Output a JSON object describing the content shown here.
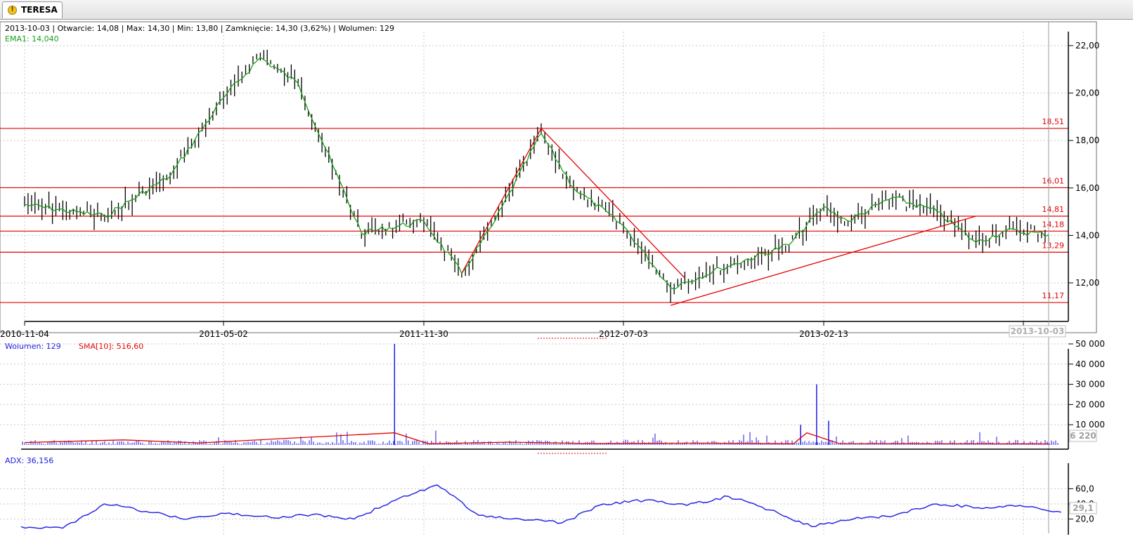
{
  "tab": {
    "title": "TERESA",
    "icon": "warning-icon",
    "icon_glyph": "!"
  },
  "price_panel": {
    "info_line": "2013-10-03 | Otwarcie: 14,08 | Max: 14,30 | Min: 13,80 | Zamknięcie: 14,30 (3,62%) | Wolumen: 129",
    "ema_label": "EMA1: 14,040",
    "y_ticks": [
      "22,00",
      "20,00",
      "18,00",
      "16,00",
      "14,00",
      "12,00"
    ],
    "x_ticks": [
      "2010-11-04",
      "2011-05-02",
      "2011-11-30",
      "2012-07-03",
      "2013-02-13",
      "2"
    ],
    "cursor_date": "2013-10-03",
    "levels": [
      "18,51",
      "16,01",
      "14,81",
      "14,18",
      "13,29",
      "11,17"
    ]
  },
  "volume_panel": {
    "label_volume": "Wolumen: 129",
    "label_sma": "SMA[10]: 516,60",
    "y_ticks": [
      "50 000",
      "40 000",
      "30 000",
      "20 000",
      "10 000"
    ],
    "cursor_value": "6 220"
  },
  "adx_panel": {
    "label": "ADX: 36,156",
    "y_ticks": [
      "60,0",
      "40,0",
      "20,0"
    ],
    "cursor_value": "29,1"
  },
  "colors": {
    "price_bar": "#000000",
    "ema": "#19a019",
    "level_line": "#e60000",
    "trend_line": "#e60000",
    "volume_bar": "#1a1ae6",
    "sma": "#e60000",
    "adx": "#2828e6",
    "info_text": "#000000",
    "grid": "#c8c8c8"
  },
  "chart_data": [
    {
      "type": "line",
      "title": "",
      "description_series": "price (OHLC bars) with EMA1",
      "x": [
        "2010-11-04",
        "2011-01-15",
        "2011-03-15",
        "2011-05-02",
        "2011-06-10",
        "2011-07-20",
        "2011-08-25",
        "2011-09-25",
        "2011-11-30",
        "2012-01-10",
        "2012-02-15",
        "2012-04-05",
        "2012-05-10",
        "2012-07-03",
        "2012-08-25",
        "2012-10-20",
        "2013-01-05",
        "2013-02-13",
        "2013-03-10",
        "2013-04-25",
        "2013-06-10",
        "2013-07-20",
        "2013-08-20",
        "2013-10-03"
      ],
      "series": [
        {
          "name": "EMA1",
          "values": [
            15.3,
            14.8,
            16.5,
            19.8,
            21.5,
            20.4,
            17.0,
            14.1,
            14.6,
            12.4,
            14.6,
            18.3,
            16.0,
            14.4,
            11.8,
            12.6,
            13.6,
            15.2,
            14.6,
            15.6,
            15.0,
            13.7,
            14.2,
            14.04
          ]
        }
      ],
      "levels": [
        18.51,
        16.01,
        14.81,
        14.18,
        13.29,
        11.17
      ],
      "ylim": [
        11,
        22.6
      ]
    },
    {
      "type": "bar",
      "title": "",
      "series": [
        {
          "name": "SMA[10]",
          "values": [
            1200,
            2500,
            1000,
            6000,
            600,
            1400,
            700,
            900,
            600,
            6000,
            700,
            516.6
          ]
        }
      ],
      "spikes": [
        {
          "x": "2011-10-30",
          "value": 50000
        },
        {
          "x": "2013-02-05",
          "value": 30000
        },
        {
          "x": "2013-01-18",
          "value": 10000
        },
        {
          "x": "2013-02-18",
          "value": 12000
        }
      ],
      "ylim": [
        0,
        50000
      ]
    },
    {
      "type": "line",
      "title": "",
      "series": [
        {
          "name": "ADX",
          "values": [
            10,
            8,
            40,
            30,
            20,
            28,
            22,
            26,
            20,
            45,
            65,
            25,
            20,
            15,
            40,
            45,
            38,
            50,
            32,
            10,
            20,
            25,
            40,
            35,
            38,
            29.1
          ]
        }
      ],
      "ylim": [
        5,
        70
      ]
    }
  ]
}
